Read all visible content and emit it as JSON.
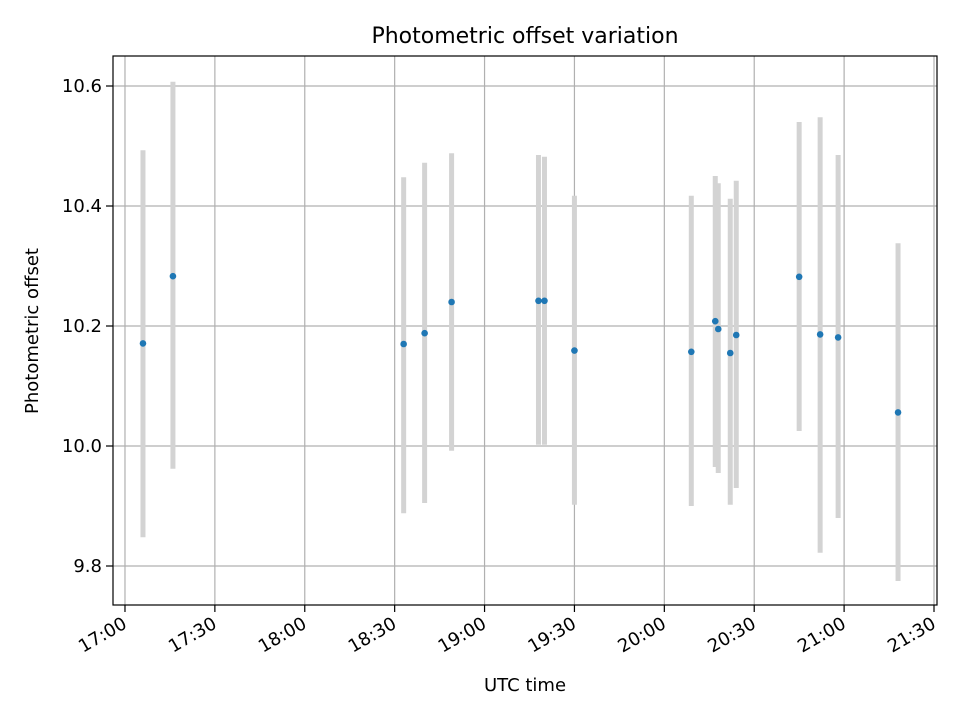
{
  "chart_data": {
    "type": "scatter",
    "title": "Photometric offset variation",
    "xlabel": "UTC time",
    "ylabel": "Photometric offset",
    "x_unit": "time (HH:MM)",
    "xlim": [
      "16:56",
      "21:31"
    ],
    "ylim": [
      9.735,
      10.65
    ],
    "x_ticks": [
      "17:00",
      "17:30",
      "18:00",
      "18:30",
      "19:00",
      "19:30",
      "20:00",
      "20:30",
      "21:00",
      "21:30"
    ],
    "y_ticks": [
      9.8,
      10.0,
      10.2,
      10.4,
      10.6
    ],
    "grid": true,
    "x_tick_rotation": "30",
    "colors": {
      "points": "#1f77b4",
      "errorbars": "#d3d3d3",
      "grid": "#b0b0b0"
    },
    "points": [
      {
        "t": "17:06",
        "y": 10.171,
        "ylo": 9.848,
        "yhi": 10.493
      },
      {
        "t": "17:16",
        "y": 10.283,
        "ylo": 9.962,
        "yhi": 10.607
      },
      {
        "t": "18:33",
        "y": 10.17,
        "ylo": 9.888,
        "yhi": 10.448
      },
      {
        "t": "18:40",
        "y": 10.188,
        "ylo": 9.905,
        "yhi": 10.472
      },
      {
        "t": "18:49",
        "y": 10.24,
        "ylo": 9.992,
        "yhi": 10.488
      },
      {
        "t": "19:18",
        "y": 10.242,
        "ylo": 10.002,
        "yhi": 10.485
      },
      {
        "t": "19:20",
        "y": 10.242,
        "ylo": 10.002,
        "yhi": 10.482
      },
      {
        "t": "19:30",
        "y": 10.159,
        "ylo": 9.902,
        "yhi": 10.417
      },
      {
        "t": "20:09",
        "y": 10.157,
        "ylo": 9.9,
        "yhi": 10.417
      },
      {
        "t": "20:17",
        "y": 10.208,
        "ylo": 9.965,
        "yhi": 10.45
      },
      {
        "t": "20:18",
        "y": 10.195,
        "ylo": 9.955,
        "yhi": 10.438
      },
      {
        "t": "20:22",
        "y": 10.155,
        "ylo": 9.902,
        "yhi": 10.412
      },
      {
        "t": "20:24",
        "y": 10.185,
        "ylo": 9.93,
        "yhi": 10.442
      },
      {
        "t": "20:45",
        "y": 10.282,
        "ylo": 10.025,
        "yhi": 10.54
      },
      {
        "t": "20:52",
        "y": 10.186,
        "ylo": 9.822,
        "yhi": 10.548
      },
      {
        "t": "20:58",
        "y": 10.181,
        "ylo": 9.88,
        "yhi": 10.485
      },
      {
        "t": "21:18",
        "y": 10.056,
        "ylo": 9.775,
        "yhi": 10.338
      }
    ]
  }
}
